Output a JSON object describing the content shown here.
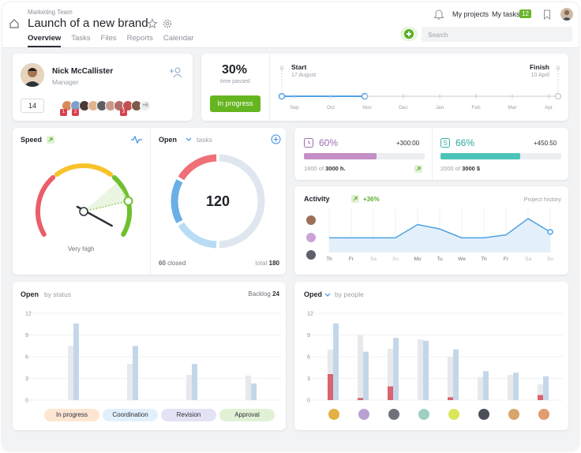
{
  "header": {
    "breadcrumb": "Marketing Team",
    "title": "Launch of a new brand",
    "tabs": [
      {
        "label": "Overview",
        "active": true
      },
      {
        "label": "Tasks"
      },
      {
        "label": "Files"
      },
      {
        "label": "Reports"
      },
      {
        "label": "Calendar"
      }
    ],
    "my_projects": "My projects",
    "my_tasks": "My tasks",
    "tasks_badge": "12",
    "search_placeholder": "Search",
    "accent": "#6bb42a"
  },
  "manager": {
    "name": "Nick McCallister",
    "role": "Manager",
    "count": "14",
    "more": "+6",
    "badges": [
      "1",
      "2",
      "3"
    ]
  },
  "timeline": {
    "percent": "30%",
    "percent_label": "time passed",
    "status": "In progress",
    "start_label": "Start",
    "start_date": "17 August",
    "finish_label": "Finish",
    "finish_date": "10 April",
    "months": [
      "Sep",
      "Oct",
      "Nov",
      "Dec",
      "Jan",
      "Feb",
      "Mar",
      "Apr"
    ]
  },
  "speed": {
    "title": "Speed",
    "value_label": "Very high",
    "level": 0.82
  },
  "open_tasks": {
    "title": "Open",
    "subtitle": "tasks",
    "total_value": "120",
    "closed_value": "60",
    "closed_label": "closed",
    "total_label": "total",
    "total_count": "180"
  },
  "budget_hours": {
    "percent": "60%",
    "delta": "+300:00",
    "used": "1800",
    "of": "of",
    "total": "3000 h.",
    "fraction": 0.6,
    "color": "#c48fc6"
  },
  "budget_money": {
    "percent": "66%",
    "delta": "+450.50",
    "used": "2000",
    "of": "of",
    "total": "3000 $",
    "fraction": 0.66,
    "color": "#4cc3b8"
  },
  "activity": {
    "title": "Activity",
    "delta": "+36%",
    "link": "Project history",
    "chart_data": {
      "type": "area",
      "x": [
        "Th",
        "Fr",
        "Sa",
        "Su",
        "Mo",
        "Tu",
        "We",
        "Th",
        "Fr",
        "Sa",
        "Su"
      ],
      "y": [
        1,
        1,
        1,
        1,
        1.9,
        1.6,
        1,
        1,
        1.2,
        2.3,
        1.4
      ],
      "ylim": [
        0,
        3
      ]
    }
  },
  "open_status": {
    "title": "Open",
    "subtitle": "by status",
    "backlog_label": "Backlog",
    "backlog_value": "24",
    "chart_data": {
      "type": "bar",
      "categories": [
        "In progress",
        "Coordination",
        "Revision",
        "Approval"
      ],
      "yticks": [
        0,
        3,
        6,
        9,
        12
      ],
      "ylim": [
        0,
        12
      ],
      "series": [
        {
          "values": [
            7.5,
            5,
            3.5,
            3.4
          ],
          "color": "#e8e9ec"
        },
        {
          "values": [
            10.6,
            7.5,
            5,
            2.3
          ],
          "color": "#c4d7ea"
        }
      ],
      "category_colors": [
        "#fde6d2",
        "#e2f0fb",
        "#e4e3f5",
        "#e1f1d5"
      ]
    }
  },
  "by_people": {
    "title": "Oped",
    "subtitle": "by people",
    "chart_data": {
      "type": "bar",
      "categories": [
        "1",
        "2",
        "3",
        "4",
        "5",
        "6",
        "7",
        "8"
      ],
      "yticks": [
        0,
        3,
        6,
        9,
        12
      ],
      "ylim": [
        0,
        12
      ],
      "series": [
        {
          "values": [
            7,
            9,
            7.1,
            8.4,
            6,
            3.2,
            3.5,
            2.2
          ],
          "color": "#e8e9ec"
        },
        {
          "values": [
            10.6,
            6.7,
            8.6,
            8.2,
            7,
            4,
            3.8,
            3.3
          ],
          "color": "#c4d7ea"
        },
        {
          "values": [
            3.6,
            0.3,
            1.9,
            0,
            0.4,
            0,
            0,
            0.7
          ],
          "color": "#d9636e"
        }
      ]
    }
  }
}
